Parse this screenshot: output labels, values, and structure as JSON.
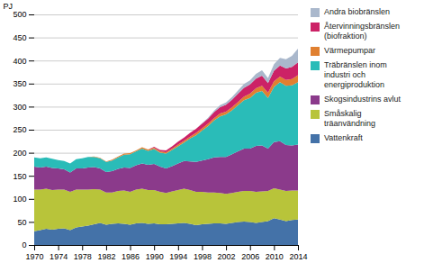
{
  "chart_data": {
    "type": "area",
    "stacked": true,
    "ylabel": "PJ",
    "x": [
      1970,
      1971,
      1972,
      1973,
      1974,
      1975,
      1976,
      1977,
      1978,
      1979,
      1980,
      1981,
      1982,
      1983,
      1984,
      1985,
      1986,
      1987,
      1988,
      1989,
      1990,
      1991,
      1992,
      1993,
      1994,
      1995,
      1996,
      1997,
      1998,
      1999,
      2000,
      2001,
      2002,
      2003,
      2004,
      2005,
      2006,
      2007,
      2008,
      2009,
      2010,
      2011,
      2012,
      2013,
      2014
    ],
    "series": [
      {
        "name": "Vattenkraft",
        "color": "#4472a8",
        "values": [
          30,
          32,
          35,
          33,
          35,
          36,
          32,
          38,
          40,
          42,
          45,
          48,
          44,
          46,
          47,
          46,
          44,
          47,
          48,
          46,
          47,
          45,
          45,
          46,
          47,
          48,
          46,
          43,
          45,
          46,
          47,
          47,
          46,
          48,
          50,
          51,
          50,
          48,
          50,
          52,
          58,
          55,
          52,
          54,
          55
        ]
      },
      {
        "name": "Småskalig\nträanvändning",
        "color": "#b8c43a",
        "values": [
          90,
          88,
          87,
          86,
          85,
          84,
          83,
          82,
          80,
          78,
          76,
          72,
          70,
          68,
          70,
          72,
          71,
          73,
          74,
          73,
          72,
          70,
          68,
          70,
          72,
          74,
          73,
          72,
          70,
          68,
          67,
          66,
          65,
          65,
          65,
          66,
          67,
          67,
          66,
          65,
          65,
          65,
          65,
          64,
          63
        ]
      },
      {
        "name": "Skogsindustrins avlut",
        "color": "#8b3a8b",
        "values": [
          50,
          48,
          48,
          48,
          46,
          44,
          42,
          46,
          46,
          48,
          48,
          46,
          44,
          46,
          48,
          50,
          52,
          53,
          55,
          55,
          57,
          55,
          53,
          55,
          58,
          60,
          62,
          65,
          68,
          72,
          76,
          78,
          80,
          84,
          88,
          92,
          92,
          100,
          100,
          92,
          100,
          105,
          100,
          98,
          100
        ]
      },
      {
        "name": "Träbränslen inom\nindustri och\nenergiproduktion",
        "color": "#2abcb8",
        "values": [
          20,
          20,
          20,
          20,
          18,
          18,
          20,
          20,
          22,
          23,
          22,
          22,
          22,
          23,
          25,
          28,
          30,
          30,
          32,
          30,
          32,
          30,
          32,
          35,
          37,
          40,
          50,
          58,
          65,
          72,
          80,
          88,
          92,
          95,
          100,
          105,
          110,
          115,
          118,
          110,
          120,
          128,
          128,
          130,
          135
        ]
      },
      {
        "name": "Värmepumpar",
        "color": "#e08030",
        "values": [
          0,
          0,
          0,
          0,
          0,
          0,
          0,
          0,
          0,
          0,
          1,
          1,
          1,
          2,
          2,
          2,
          2,
          2,
          3,
          3,
          3,
          3,
          3,
          3,
          4,
          4,
          4,
          5,
          5,
          5,
          5,
          6,
          6,
          7,
          7,
          8,
          9,
          10,
          11,
          11,
          12,
          12,
          13,
          14,
          15
        ]
      },
      {
        "name": "Återvinningsbränslen\n(biofraktion)",
        "color": "#cc2266",
        "values": [
          0,
          0,
          0,
          0,
          0,
          0,
          0,
          0,
          0,
          0,
          0,
          0,
          0,
          0,
          0,
          0,
          0,
          0,
          0,
          0,
          2,
          3,
          4,
          5,
          6,
          7,
          8,
          9,
          10,
          11,
          13,
          14,
          15,
          16,
          18,
          19,
          20,
          21,
          22,
          21,
          23,
          24,
          25,
          26,
          28
        ]
      },
      {
        "name": "Andra biobränslen",
        "color": "#aab8cc",
        "values": [
          0,
          0,
          0,
          0,
          0,
          0,
          0,
          0,
          0,
          0,
          0,
          0,
          0,
          0,
          0,
          0,
          0,
          0,
          0,
          0,
          0,
          0,
          0,
          0,
          0,
          0,
          0,
          0,
          1,
          2,
          3,
          4,
          5,
          6,
          7,
          8,
          9,
          10,
          12,
          11,
          14,
          17,
          20,
          24,
          30
        ]
      }
    ],
    "xlim": [
      1970,
      2014
    ],
    "xticks": [
      1970,
      1974,
      1978,
      1982,
      1986,
      1990,
      1994,
      1998,
      2002,
      2006,
      2010,
      2014
    ],
    "ylim": [
      0,
      500
    ],
    "yticks": [
      0,
      50,
      100,
      150,
      200,
      250,
      300,
      350,
      400,
      450,
      500
    ],
    "grid": true,
    "legend": "right"
  }
}
